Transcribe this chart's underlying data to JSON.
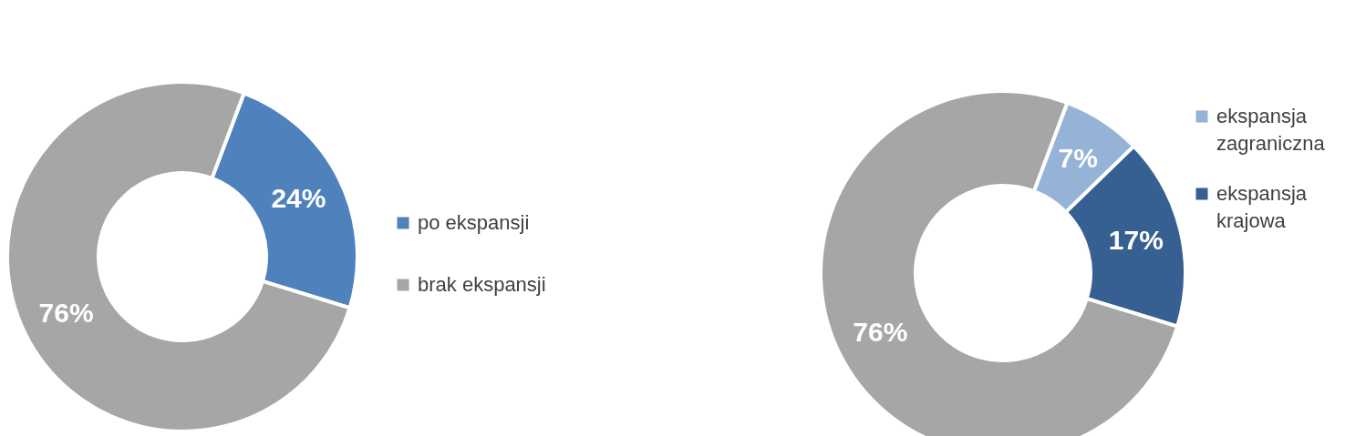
{
  "chart_data": [
    {
      "type": "donut",
      "categories": [
        "po ekspansji",
        "brak ekspansji"
      ],
      "values": [
        24,
        76
      ],
      "colors": [
        "#4f81bd",
        "#a6a6a6"
      ],
      "value_labels": [
        "24%",
        "76%"
      ],
      "legend": "right"
    },
    {
      "type": "donut",
      "categories": [
        "ekspansja zagraniczna",
        "ekspansja krajowa",
        null
      ],
      "values": [
        7,
        17,
        76
      ],
      "colors": [
        "#95b3d7",
        "#376092",
        "#a6a6a6"
      ],
      "value_labels": [
        "7%",
        "17%",
        "76%"
      ],
      "legend": "right"
    }
  ]
}
